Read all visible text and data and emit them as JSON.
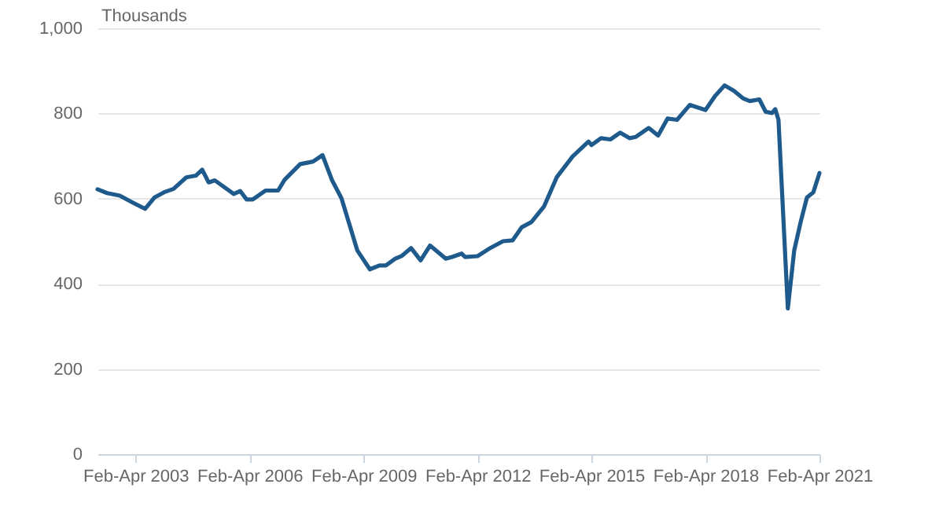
{
  "chart_data": {
    "type": "line",
    "ylabel": "Thousands",
    "x": [
      "2002-03",
      "2002-06",
      "2002-10",
      "2003-02",
      "2003-06",
      "2003-09",
      "2003-12",
      "2004-03",
      "2004-07",
      "2004-10",
      "2004-12",
      "2005-02",
      "2005-04",
      "2005-10",
      "2005-12",
      "2006-02",
      "2006-04",
      "2006-08",
      "2006-12",
      "2007-02",
      "2007-07",
      "2007-11",
      "2008-02",
      "2008-05",
      "2008-08",
      "2009-01",
      "2009-05",
      "2009-08",
      "2009-10",
      "2010-01",
      "2010-03",
      "2010-06",
      "2010-09",
      "2010-12",
      "2011-05",
      "2011-07",
      "2011-10",
      "2011-11",
      "2012-03",
      "2012-07",
      "2012-11",
      "2013-02",
      "2013-05",
      "2013-08",
      "2013-12",
      "2014-04",
      "2014-09",
      "2015-02",
      "2015-03",
      "2015-06",
      "2015-09",
      "2015-12",
      "2016-03",
      "2016-05",
      "2016-09",
      "2016-12",
      "2017-03",
      "2017-06",
      "2017-10",
      "2018-03",
      "2018-06",
      "2018-09",
      "2018-12",
      "2019-03",
      "2019-05",
      "2019-08",
      "2019-10",
      "2019-12",
      "2020-01",
      "2020-02",
      "2020-05",
      "2020-07",
      "2020-09",
      "2020-11",
      "2021-01",
      "2021-03"
    ],
    "series": [
      {
        "color": "#1f5a8c",
        "values": [
          622,
          613,
          607,
          591,
          576,
          603,
          615,
          623,
          650,
          654,
          668,
          638,
          643,
          611,
          618,
          598,
          598,
          619,
          619,
          644,
          681,
          687,
          702,
          644,
          601,
          478,
          434,
          443,
          443,
          459,
          465,
          484,
          455,
          490,
          459,
          463,
          471,
          463,
          465,
          484,
          500,
          502,
          533,
          545,
          582,
          650,
          699,
          734,
          726,
          742,
          739,
          755,
          742,
          745,
          766,
          748,
          788,
          785,
          820,
          808,
          841,
          866,
          853,
          835,
          829,
          833,
          804,
          801,
          810,
          785,
          342,
          478,
          545,
          603,
          615,
          660
        ]
      }
    ],
    "xlim": [
      "2002-03",
      "2021-03"
    ],
    "xticks": [
      {
        "value": "2003-03",
        "label": "Feb-Apr 2003"
      },
      {
        "value": "2006-03",
        "label": "Feb-Apr 2006"
      },
      {
        "value": "2009-03",
        "label": "Feb-Apr 2009"
      },
      {
        "value": "2012-03",
        "label": "Feb-Apr 2012"
      },
      {
        "value": "2015-03",
        "label": "Feb-Apr 2015"
      },
      {
        "value": "2018-03",
        "label": "Feb-Apr 2018"
      },
      {
        "value": "2021-03",
        "label": "Feb-Apr 2021"
      }
    ],
    "ylim": [
      0,
      1000
    ],
    "yticks": [
      0,
      200,
      400,
      600,
      800,
      {
        "value": 1000,
        "label": "1,000"
      }
    ],
    "grid": "y",
    "marker": "none",
    "line_style": "solid"
  }
}
